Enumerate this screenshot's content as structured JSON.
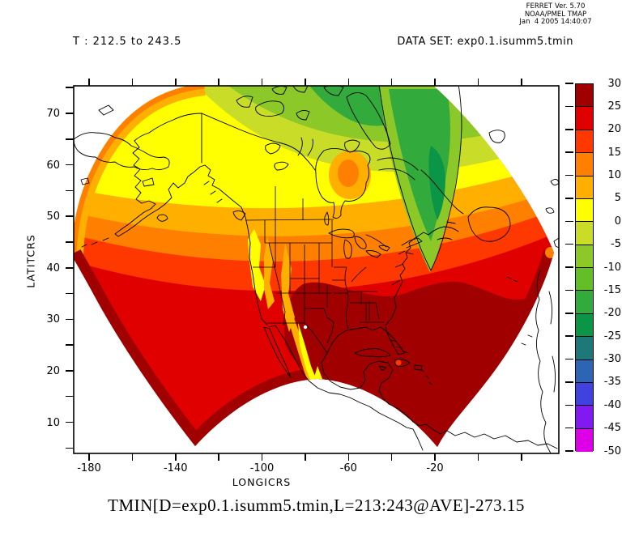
{
  "provenance": {
    "app_version": "FERRET Ver. 5.70",
    "organization": "NOAA/PMEL TMAP",
    "timestamp": "Jan  4 2005 14:40:07"
  },
  "titles": {
    "time_range": "T : 212.5 to 243.5",
    "dataset": "DATA SET: exp0.1.isumm5.tmin",
    "variable_expression": "TMIN[D=exp0.1.isumm5.tmin,L=213:243@AVE]-273.15"
  },
  "axes": {
    "x": {
      "label": "LONGICRS",
      "major_ticks": [
        -180,
        -140,
        -100,
        -60,
        -20
      ],
      "minor_ticks": [
        -160,
        -120,
        -80,
        -40,
        0,
        20
      ]
    },
    "y": {
      "label": "LATITCRS",
      "major_ticks": [
        70,
        60,
        50,
        40,
        30,
        20,
        10
      ],
      "minor_ticks": [
        75,
        65,
        55,
        45,
        35,
        25,
        15,
        5
      ]
    }
  },
  "colorbar": {
    "tick_labels": [
      "30",
      "25",
      "20",
      "15",
      "10",
      "5",
      "0",
      "-5",
      "-10",
      "-15",
      "-20",
      "-25",
      "-30",
      "-35",
      "-40",
      "-45",
      "-50"
    ],
    "segment_colors_top_to_bottom": [
      "#a00000",
      "#e00000",
      "#ff3800",
      "#ff8000",
      "#ffaf00",
      "#ffff00",
      "#c8dc28",
      "#8cc828",
      "#64be28",
      "#32aa3c",
      "#0a9646",
      "#1e7878",
      "#2e64b4",
      "#4141e0",
      "#8219f0",
      "#dc00e6"
    ]
  },
  "chart_data": {
    "type": "filled-contour-map",
    "title": "TMIN[D=exp0.1.isumm5.tmin,L=213:243@AVE]-273.15",
    "annotation_left": "T : 212.5 to 243.5",
    "annotation_right": "DATA SET: exp0.1.isumm5.tmin",
    "xlabel": "LONGICRS",
    "ylabel": "LATITCRS",
    "x_ticks": [
      -180,
      -140,
      -100,
      -60,
      -20
    ],
    "y_ticks": [
      10,
      20,
      30,
      40,
      50,
      60,
      70
    ],
    "xlim_approx": [
      -188,
      37
    ],
    "ylim_approx": [
      3,
      76
    ],
    "grid": false,
    "legend_position": "right colorbar",
    "colorbar_levels": [
      30,
      25,
      20,
      15,
      10,
      5,
      0,
      -5,
      -10,
      -15,
      -20,
      -25,
      -30,
      -35,
      -40,
      -45,
      -50
    ],
    "colorbar_colors": [
      "#a00000",
      "#e00000",
      "#ff3800",
      "#ff8000",
      "#ffaf00",
      "#ffff00",
      "#c8dc28",
      "#8cc828",
      "#64be28",
      "#32aa3c",
      "#0a9646",
      "#1e7878",
      "#2e64b4",
      "#4141e0",
      "#8219f0",
      "#dc00e6"
    ],
    "units_hint": "degrees C (TMIN in Kelvin minus 273.15), monthly-average minimum temperature",
    "projection": "curvilinear model grid (fan/butterfly shaped domain) centered on North America",
    "zones": [
      {
        "region": "Gulf of Mexico, Caribbean, SE United States, subtropical Atlantic and Pacific edges",
        "value_range": "25 to 30"
      },
      {
        "region": "Southern/central US plains, mid-latitude Pacific and Atlantic",
        "value_range": "20 to 25"
      },
      {
        "region": "Northern US, Gulf of Alaska, central Atlantic band",
        "value_range": "15 to 20"
      },
      {
        "region": "Southern Canada, Alaska south coast, Newfoundland area",
        "value_range": "5 to 15"
      },
      {
        "region": "Interior Alaska and central/northern Canada",
        "value_range": "0 to 5"
      },
      {
        "region": "Canadian Arctic Archipelago and Hudson Bay surroundings",
        "value_range": "-10 to 0"
      },
      {
        "region": "Greenland interior (coldest tongue)",
        "value_range": "-25 to -10"
      },
      {
        "region": "Rocky Mountains / Sierra Madre ridges (cold streaks)",
        "value_range": "0 to 10"
      }
    ]
  }
}
